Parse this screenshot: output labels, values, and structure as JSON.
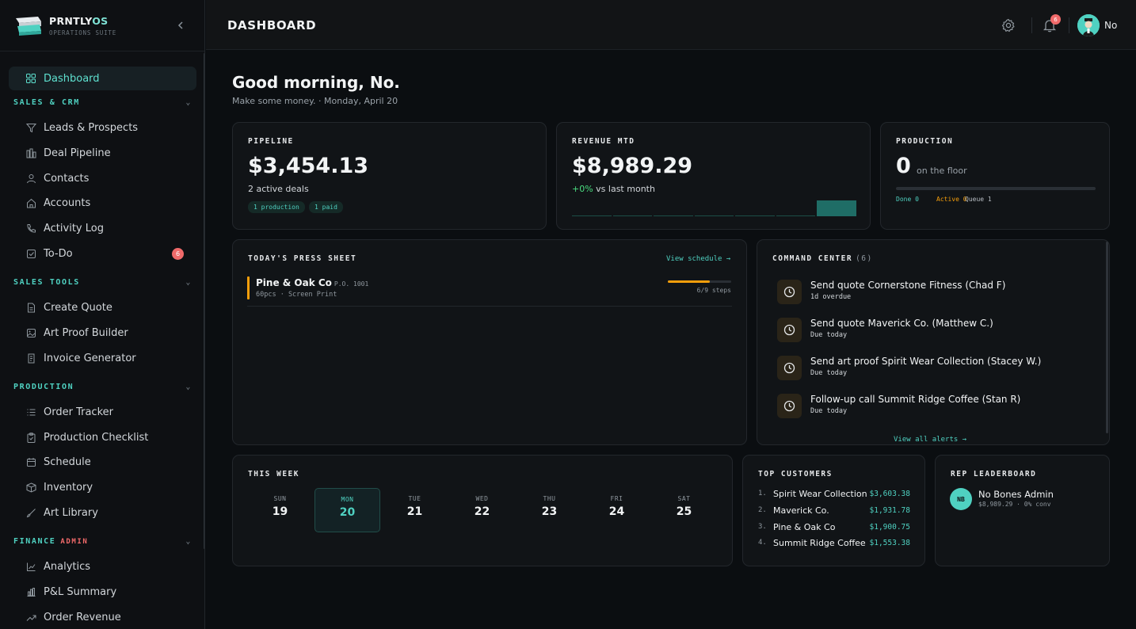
{
  "brand": {
    "name": "PRNTLY",
    "name_suffix": "OS",
    "subtitle": "OPERATIONS SUITE"
  },
  "sidebar": {
    "dashboard": {
      "label": "Dashboard",
      "icon": "grid-icon"
    },
    "sections": [
      {
        "label": "SALES & CRM",
        "items": [
          {
            "label": "Leads & Prospects",
            "icon": "filter-icon"
          },
          {
            "label": "Deal Pipeline",
            "icon": "bar-columns-icon"
          },
          {
            "label": "Contacts",
            "icon": "user-icon"
          },
          {
            "label": "Accounts",
            "icon": "home-icon"
          },
          {
            "label": "Activity Log",
            "icon": "phone-icon"
          },
          {
            "label": "To-Do",
            "icon": "checkbox-icon",
            "badge": "6"
          }
        ]
      },
      {
        "label": "SALES TOOLS",
        "items": [
          {
            "label": "Create Quote",
            "icon": "document-icon"
          },
          {
            "label": "Art Proof Builder",
            "icon": "image-icon"
          },
          {
            "label": "Invoice Generator",
            "icon": "receipt-icon"
          }
        ]
      },
      {
        "label": "PRODUCTION",
        "items": [
          {
            "label": "Order Tracker",
            "icon": "list-icon"
          },
          {
            "label": "Production Checklist",
            "icon": "clipboard-icon"
          },
          {
            "label": "Schedule",
            "icon": "calendar-icon"
          },
          {
            "label": "Inventory",
            "icon": "box-icon"
          },
          {
            "label": "Art Library",
            "icon": "brush-icon"
          }
        ]
      },
      {
        "label": "FINANCE",
        "tag": "ADMIN",
        "items": [
          {
            "label": "Analytics",
            "icon": "line-chart-icon"
          },
          {
            "label": "P&L Summary",
            "icon": "bar-chart-icon"
          },
          {
            "label": "Order Revenue",
            "icon": "trend-icon"
          }
        ]
      }
    ]
  },
  "header": {
    "title": "DASHBOARD",
    "notifications": "6",
    "user": "No"
  },
  "greeting": {
    "title": "Good morning, No.",
    "subtitle": "Make some money. · Monday, April 20"
  },
  "pipeline": {
    "label": "PIPELINE",
    "value": "$3,454.13",
    "sub": "2 active deals",
    "pills": [
      "1 production",
      "1 paid"
    ]
  },
  "revenue": {
    "label": "REVENUE MTD",
    "value": "$8,989.29",
    "change": "+0%",
    "change_text": " vs last month",
    "spark_values": [
      0,
      0,
      0,
      0,
      0,
      0,
      8989.29
    ]
  },
  "production": {
    "label": "PRODUCTION",
    "value": "0",
    "sub": "on the floor",
    "done": "Done 0",
    "active": "Active 0",
    "queue": "Queue 1",
    "progress": 0
  },
  "press_sheet": {
    "label": "TODAY'S PRESS SHEET",
    "link": "View schedule →",
    "jobs": [
      {
        "name": "Pine & Oak Co",
        "po": "P.O. 1001",
        "meta": "60pcs · Screen Print",
        "steps": "6/9 steps",
        "progress": 0.667
      }
    ]
  },
  "command_center": {
    "label": "COMMAND CENTER",
    "count": "(6)",
    "link": "View all alerts →",
    "alerts": [
      {
        "title": "Send quote Cornerstone Fitness (Chad F)",
        "due": "1d overdue"
      },
      {
        "title": "Send quote Maverick Co. (Matthew C.)",
        "due": "Due today"
      },
      {
        "title": "Send art proof Spirit Wear Collection (Stacey W.)",
        "due": "Due today"
      },
      {
        "title": "Follow-up call Summit Ridge Coffee (Stan R)",
        "due": "Due today"
      }
    ]
  },
  "week": {
    "label": "THIS WEEK",
    "days": [
      {
        "name": "SUN",
        "date": "19"
      },
      {
        "name": "MON",
        "date": "20",
        "today": true
      },
      {
        "name": "TUE",
        "date": "21"
      },
      {
        "name": "WED",
        "date": "22"
      },
      {
        "name": "THU",
        "date": "23"
      },
      {
        "name": "FRI",
        "date": "24"
      },
      {
        "name": "SAT",
        "date": "25"
      }
    ]
  },
  "top_customers": {
    "label": "TOP CUSTOMERS",
    "rows": [
      {
        "rank": "1.",
        "name": "Spirit Wear Collection",
        "value": "$3,603.38"
      },
      {
        "rank": "2.",
        "name": "Maverick Co.",
        "value": "$1,931.78"
      },
      {
        "rank": "3.",
        "name": "Pine & Oak Co",
        "value": "$1,900.75"
      },
      {
        "rank": "4.",
        "name": "Summit Ridge Coffee",
        "value": "$1,553.38"
      }
    ]
  },
  "leaderboard": {
    "label": "REP LEADERBOARD",
    "initials": "NB",
    "name": "No Bones Admin",
    "stats": "$8,989.29 · 0% conv"
  },
  "colors": {
    "accent": "#4fd1c1",
    "warning": "#f59e0b",
    "danger": "#f06a6a",
    "positive": "#4ade80"
  }
}
